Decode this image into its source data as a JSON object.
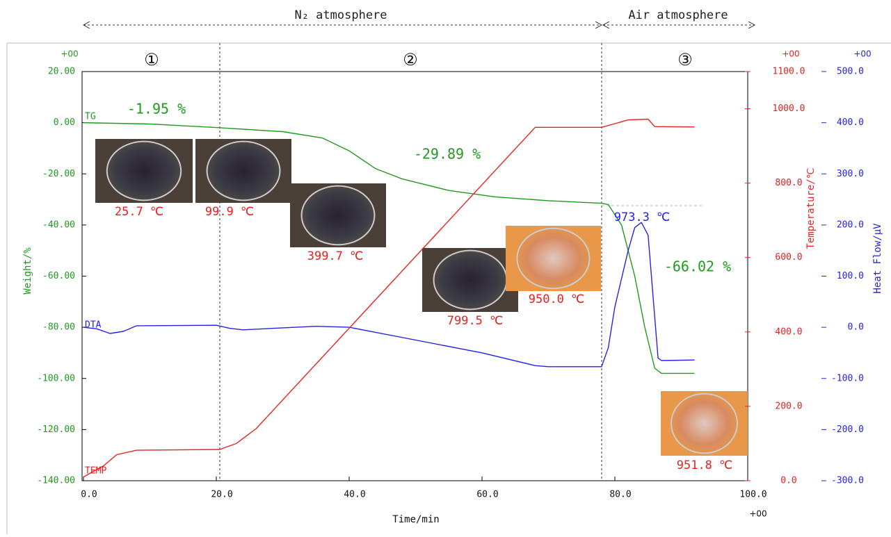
{
  "chart_data": {
    "type": "line",
    "x_label": "Time/min",
    "y_label": "Weight/%",
    "y2_label": "Temperature/℃",
    "y3_label": "Heat Flow/μV",
    "x_exponent": "+00",
    "y_exponent": "+00",
    "y2_exponent": "+00",
    "y3_exponent": "+00",
    "xlim": [
      0,
      100
    ],
    "ylim": [
      -140,
      20
    ],
    "y2lim": [
      0,
      1100
    ],
    "y3lim": [
      -300,
      500
    ],
    "xticks": [
      {
        "value": 0,
        "label": "0.0"
      },
      {
        "value": 20,
        "label": "20.0"
      },
      {
        "value": 40,
        "label": "40.0"
      },
      {
        "value": 60,
        "label": "60.0"
      },
      {
        "value": 80,
        "label": "80.0"
      },
      {
        "value": 100,
        "label": "100.0"
      }
    ],
    "yticks": [
      {
        "value": 20,
        "label": "20.00"
      },
      {
        "value": 0,
        "label": "0.00"
      },
      {
        "value": -20,
        "label": "-20.00"
      },
      {
        "value": -40,
        "label": "-40.00"
      },
      {
        "value": -60,
        "label": "-60.00"
      },
      {
        "value": -80,
        "label": "-80.00"
      },
      {
        "value": -100,
        "label": "-100.00"
      },
      {
        "value": -120,
        "label": "-120.00"
      },
      {
        "value": -140,
        "label": "-140.00"
      }
    ],
    "y2ticks": [
      {
        "value": 1100,
        "label": "1100.0"
      },
      {
        "value": 1000,
        "label": "1000.0"
      },
      {
        "value": 800,
        "label": "800.0"
      },
      {
        "value": 600,
        "label": "600.0"
      },
      {
        "value": 400,
        "label": "400.0"
      },
      {
        "value": 200,
        "label": "200.0"
      },
      {
        "value": 0,
        "label": "0.0"
      }
    ],
    "y3ticks": [
      {
        "value": 500,
        "label": "500.0"
      },
      {
        "value": 400,
        "label": "400.0"
      },
      {
        "value": 300,
        "label": "300.0"
      },
      {
        "value": 200,
        "label": "200.0"
      },
      {
        "value": 100,
        "label": "100.0"
      },
      {
        "value": 0,
        "label": "0.0"
      },
      {
        "value": -100,
        "label": "-100.0"
      },
      {
        "value": -200,
        "label": "-200.0"
      },
      {
        "value": -300,
        "label": "-300.0"
      }
    ],
    "series": [
      {
        "name": "TG",
        "color": "#1f9a1f",
        "axis": "y",
        "x": [
          0,
          10,
          20,
          30,
          36,
          40,
          44,
          48,
          55,
          62,
          70,
          78,
          79,
          81,
          83,
          84.5,
          86,
          87,
          92
        ],
        "values": [
          0,
          -0.5,
          -1.9,
          -3.5,
          -6,
          -11,
          -18,
          -22,
          -26.5,
          -29,
          -30.5,
          -31.5,
          -32,
          -40,
          -60,
          -80,
          -96,
          -98,
          -98
        ]
      },
      {
        "name": "DTA",
        "color": "#2323e6",
        "axis": "y3",
        "x": [
          0,
          2,
          4,
          6,
          8,
          20,
          22,
          24,
          30,
          35,
          40,
          50,
          60,
          68,
          70,
          78,
          79,
          80,
          82,
          83,
          84,
          85,
          86,
          86.5,
          87,
          92
        ],
        "values": [
          0,
          -3,
          -12,
          -8,
          3,
          4,
          -2,
          -5,
          -1,
          2,
          0,
          -25,
          -50,
          -75,
          -77,
          -77,
          -40,
          40,
          150,
          195,
          205,
          180,
          20,
          -60,
          -65,
          -64
        ]
      },
      {
        "name": "TEMP",
        "color": "#e82020",
        "axis": "y2",
        "x": [
          0,
          3,
          5,
          8,
          20.5,
          23,
          26,
          68,
          78,
          80,
          82,
          85,
          86,
          92
        ],
        "values": [
          10,
          40,
          70,
          82,
          84,
          100,
          140,
          950,
          950,
          960,
          970,
          972,
          952,
          951
        ]
      }
    ],
    "regions": [
      "N₂ atmosphere",
      "Air atmosphere"
    ],
    "stages": [
      "①",
      "②",
      "③"
    ],
    "mass_losses": [
      "-1.95 %",
      "-29.89 %",
      "-66.02 %"
    ],
    "temperatures": [
      "25.7 ℃",
      "99.9 ℃",
      "399.7 ℃",
      "799.5 ℃",
      "950.0 ℃",
      "973.3 ℃",
      "951.8 ℃"
    ]
  }
}
